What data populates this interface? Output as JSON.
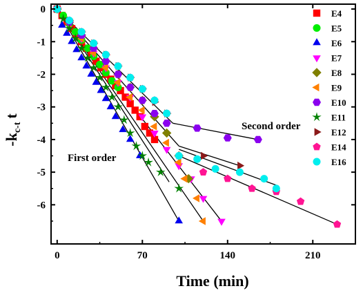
{
  "chart_data": {
    "type": "scatter",
    "xlabel": "Time (min)",
    "ylabel_main": "-k",
    "ylabel_sub": "c-t",
    "ylabel_tail": "t",
    "xlim": [
      -5,
      245
    ],
    "ylim": [
      -7.2,
      0.15
    ],
    "xticks": [
      0,
      70,
      140,
      210
    ],
    "yticks": [
      0,
      -1,
      -2,
      -3,
      -4,
      -5,
      -6
    ],
    "annotations": [
      "Second order",
      "First order"
    ],
    "series": [
      {
        "name": "E4",
        "color": "#ff0000",
        "marker": "square",
        "x": [
          0,
          4,
          8,
          12,
          16,
          20,
          24,
          28,
          32,
          36,
          40,
          44,
          48,
          52,
          56,
          60,
          64,
          68,
          72,
          76,
          80
        ],
        "y": [
          0,
          -0.2,
          -0.4,
          -0.6,
          -0.8,
          -1.0,
          -1.2,
          -1.4,
          -1.6,
          -1.8,
          -2.0,
          -2.15,
          -2.35,
          -2.5,
          -2.7,
          -2.9,
          -3.1,
          -3.3,
          -3.6,
          -3.8,
          -4.0
        ]
      },
      {
        "name": "E5",
        "color": "#00ee00",
        "marker": "circle",
        "x": [
          0,
          5,
          10,
          15,
          20,
          25,
          30,
          35,
          40,
          45,
          50
        ],
        "y": [
          0,
          -0.2,
          -0.45,
          -0.7,
          -0.95,
          -1.2,
          -1.45,
          -1.7,
          -1.95,
          -2.2,
          -2.4
        ]
      },
      {
        "name": "E6",
        "color": "#0000ee",
        "marker": "triangle-up",
        "x": [
          0,
          4,
          8,
          12,
          16,
          20,
          24,
          28,
          32,
          36,
          40,
          44,
          48,
          54,
          60,
          68,
          100
        ],
        "y": [
          0,
          -0.5,
          -0.75,
          -1.0,
          -1.25,
          -1.5,
          -1.75,
          -2.0,
          -2.25,
          -2.5,
          -2.75,
          -3.0,
          -3.3,
          -3.7,
          -4.0,
          -4.5,
          -6.5
        ]
      },
      {
        "name": "E7",
        "color": "#ff00ff",
        "marker": "triangle-down",
        "x": [
          0,
          10,
          20,
          30,
          40,
          50,
          60,
          70,
          80,
          90,
          100,
          110,
          120,
          135
        ],
        "y": [
          0,
          -0.45,
          -0.9,
          -1.35,
          -1.8,
          -2.25,
          -2.7,
          -3.3,
          -3.8,
          -4.3,
          -4.8,
          -5.2,
          -5.8,
          -6.5
        ]
      },
      {
        "name": "E8",
        "color": "#808000",
        "marker": "diamond",
        "x": [
          0,
          10,
          20,
          30,
          40,
          50,
          60,
          70,
          80,
          90,
          100,
          108
        ],
        "y": [
          0,
          -0.4,
          -0.8,
          -1.2,
          -1.6,
          -2.0,
          -2.4,
          -2.8,
          -3.3,
          -3.8,
          -4.5,
          -5.2
        ]
      },
      {
        "name": "E9",
        "color": "#ff8000",
        "marker": "triangle-left",
        "x": [
          0,
          10,
          20,
          30,
          40,
          50,
          60,
          70,
          80,
          90,
          100,
          105,
          115,
          120
        ],
        "y": [
          0,
          -0.45,
          -0.9,
          -1.35,
          -1.8,
          -2.25,
          -2.7,
          -3.1,
          -3.6,
          -4.1,
          -4.7,
          -5.2,
          -5.8,
          -6.5
        ]
      },
      {
        "name": "E10",
        "color": "#8a00ee",
        "marker": "hexagon",
        "x": [
          0,
          10,
          20,
          30,
          40,
          50,
          60,
          70,
          80,
          90,
          115,
          140,
          165
        ],
        "y": [
          0,
          -0.4,
          -0.8,
          -1.2,
          -1.6,
          -2.0,
          -2.4,
          -2.8,
          -3.2,
          -3.5,
          -3.65,
          -3.95,
          -4.0
        ]
      },
      {
        "name": "E11",
        "color": "#008000",
        "marker": "star",
        "x": [
          0,
          5,
          10,
          15,
          20,
          25,
          30,
          35,
          40,
          45,
          50,
          55,
          60,
          65,
          70,
          75,
          85,
          100
        ],
        "y": [
          0,
          -0.3,
          -0.6,
          -0.9,
          -1.2,
          -1.5,
          -1.8,
          -2.1,
          -2.4,
          -2.7,
          -3.0,
          -3.4,
          -3.8,
          -4.2,
          -4.5,
          -4.7,
          -5.0,
          -5.5
        ]
      },
      {
        "name": "E12",
        "color": "#8b1a1a",
        "marker": "triangle-right",
        "x": [
          0,
          10,
          20,
          30,
          40,
          50,
          60,
          70,
          80,
          90,
          120,
          150
        ],
        "y": [
          0,
          -0.35,
          -0.7,
          -1.05,
          -1.4,
          -1.75,
          -2.1,
          -2.45,
          -2.85,
          -3.2,
          -4.5,
          -4.8
        ]
      },
      {
        "name": "E14",
        "color": "#ff1493",
        "marker": "pentagon",
        "x": [
          0,
          10,
          20,
          30,
          40,
          50,
          60,
          70,
          80,
          90,
          100,
          120,
          140,
          160,
          180,
          200,
          230
        ],
        "y": [
          0,
          -0.35,
          -0.7,
          -1.05,
          -1.4,
          -1.75,
          -2.1,
          -2.45,
          -2.8,
          -3.2,
          -4.5,
          -5.0,
          -5.2,
          -5.5,
          -5.6,
          -5.9,
          -6.6
        ]
      },
      {
        "name": "E16",
        "color": "#00eeee",
        "marker": "circle",
        "x": [
          0,
          10,
          20,
          30,
          40,
          50,
          60,
          70,
          80,
          90,
          100,
          115,
          130,
          150,
          170,
          180
        ],
        "y": [
          0,
          -0.35,
          -0.7,
          -1.05,
          -1.4,
          -1.75,
          -2.1,
          -2.45,
          -2.8,
          -3.2,
          -4.5,
          -4.6,
          -4.9,
          -5.0,
          -5.2,
          -5.5
        ]
      }
    ],
    "fit_lines": [
      {
        "x": [
          0,
          100
        ],
        "y": [
          0,
          -6.5
        ]
      },
      {
        "x": [
          0,
          120
        ],
        "y": [
          0,
          -6.5
        ]
      },
      {
        "x": [
          0,
          135
        ],
        "y": [
          0,
          -6.5
        ]
      },
      {
        "x": [
          0,
          92
        ],
        "y": [
          0,
          -5.3
        ]
      },
      {
        "x": [
          0,
          100
        ],
        "y": [
          0,
          -4.2
        ]
      },
      {
        "x": [
          0,
          95
        ],
        "y": [
          0,
          -3.5
        ]
      },
      {
        "x": [
          95,
          165
        ],
        "y": [
          -3.5,
          -4.0
        ]
      },
      {
        "x": [
          100,
          150
        ],
        "y": [
          -4.2,
          -4.8
        ]
      },
      {
        "x": [
          100,
          180
        ],
        "y": [
          -4.3,
          -5.4
        ]
      },
      {
        "x": [
          100,
          230
        ],
        "y": [
          -4.5,
          -6.6
        ]
      }
    ]
  }
}
